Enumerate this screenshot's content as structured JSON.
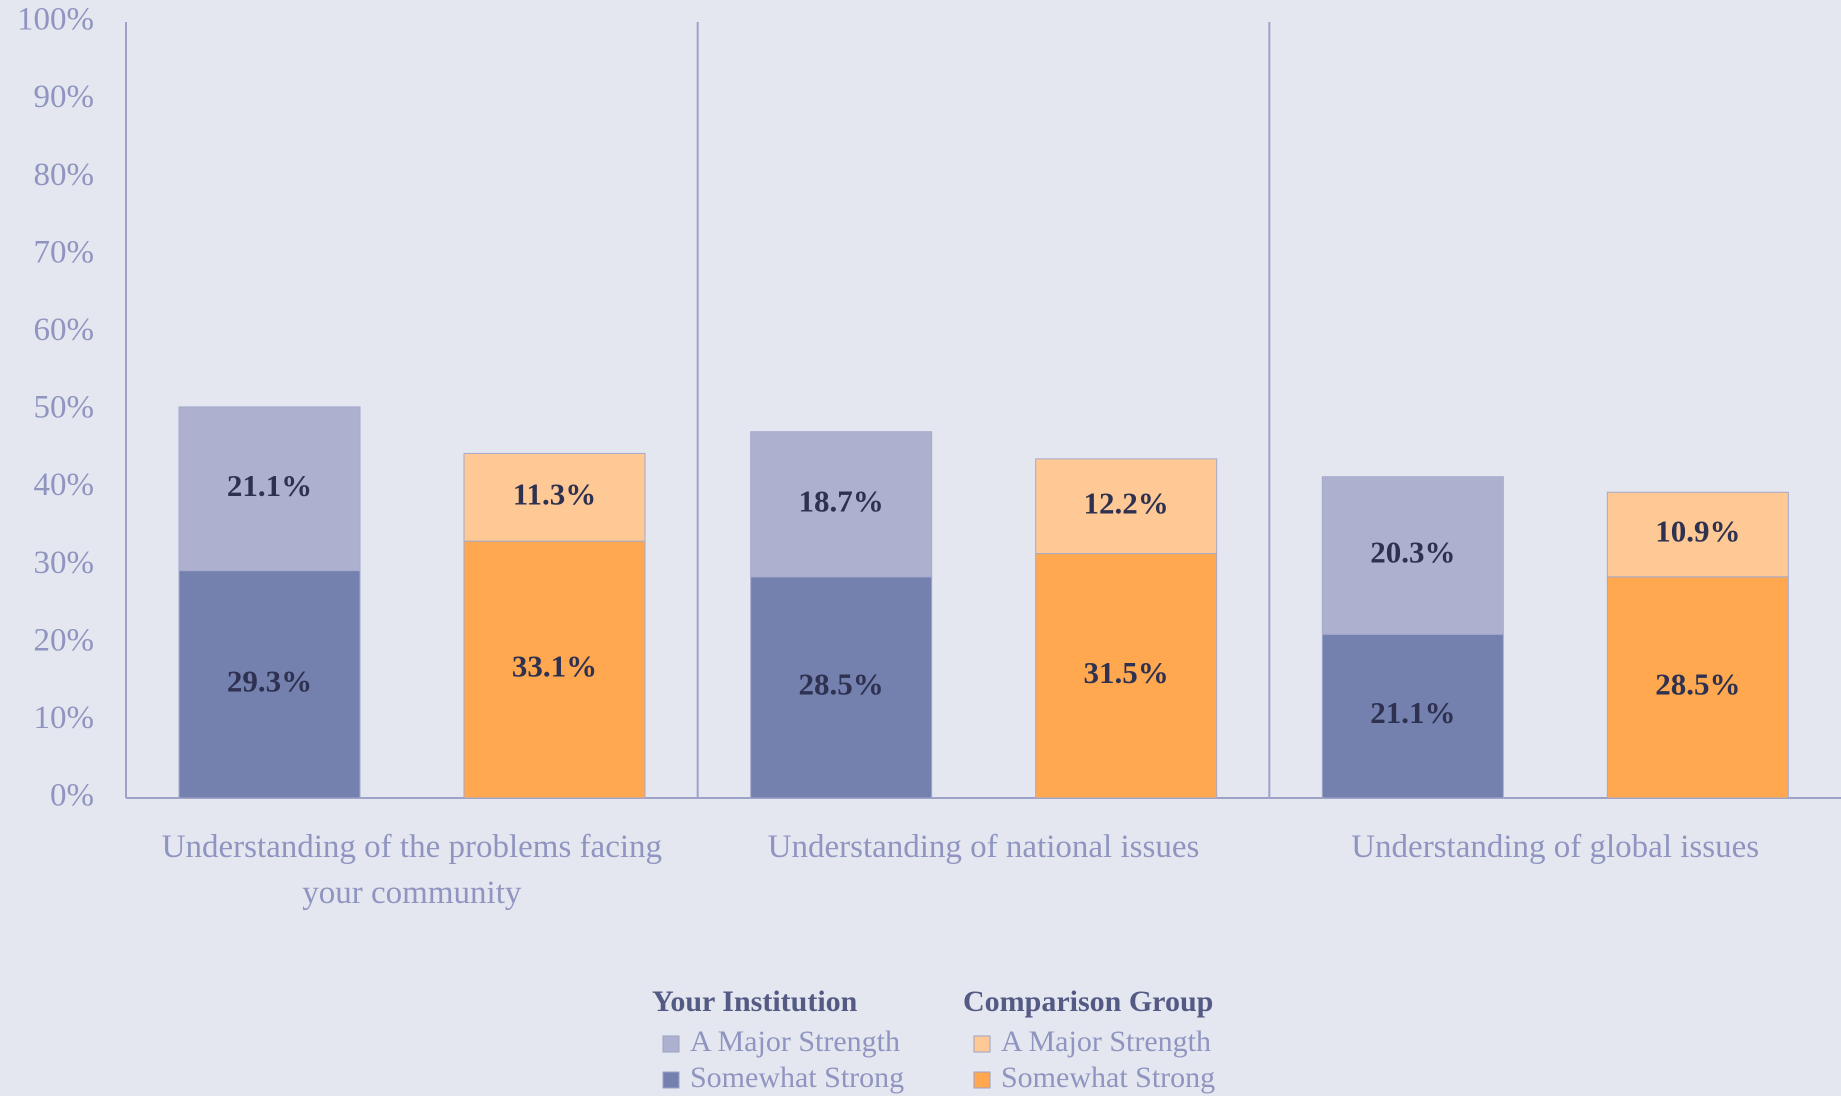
{
  "chart_data": {
    "type": "grouped_stacked_bar",
    "categories": [
      "Understanding of the problems facing your community",
      "Understanding of national issues",
      "Understanding of global issues"
    ],
    "ylim": [
      0,
      100
    ],
    "yticks": [
      {
        "value": 0,
        "label": "0%"
      },
      {
        "value": 10,
        "label": "10%"
      },
      {
        "value": 20,
        "label": "20%"
      },
      {
        "value": 30,
        "label": "30%"
      },
      {
        "value": 40,
        "label": "40%"
      },
      {
        "value": 50,
        "label": "50%"
      },
      {
        "value": 60,
        "label": "60%"
      },
      {
        "value": 70,
        "label": "70%"
      },
      {
        "value": 80,
        "label": "80%"
      },
      {
        "value": 90,
        "label": "90%"
      },
      {
        "value": 100,
        "label": "100%"
      }
    ],
    "groups": [
      {
        "name": "Your Institution",
        "series": [
          {
            "name": "A Major Strength",
            "color": "#adb1cf",
            "values": [
              21.1,
              18.7,
              20.3
            ],
            "value_labels": [
              "21.1%",
              "18.7%",
              "20.3%"
            ]
          },
          {
            "name": "Somewhat Strong",
            "color": "#7480ad",
            "values": [
              29.3,
              28.5,
              21.1
            ],
            "value_labels": [
              "29.3%",
              "28.5%",
              "21.1%"
            ]
          }
        ]
      },
      {
        "name": "Comparison Group",
        "series": [
          {
            "name": "A Major Strength",
            "color": "#fec994",
            "values": [
              11.3,
              12.2,
              10.9
            ],
            "value_labels": [
              "11.3%",
              "12.2%",
              "10.9%"
            ]
          },
          {
            "name": "Somewhat Strong",
            "color": "#ffa84f",
            "values": [
              33.1,
              31.5,
              28.5
            ],
            "value_labels": [
              "33.1%",
              "31.5%",
              "28.5%"
            ]
          }
        ]
      }
    ]
  }
}
